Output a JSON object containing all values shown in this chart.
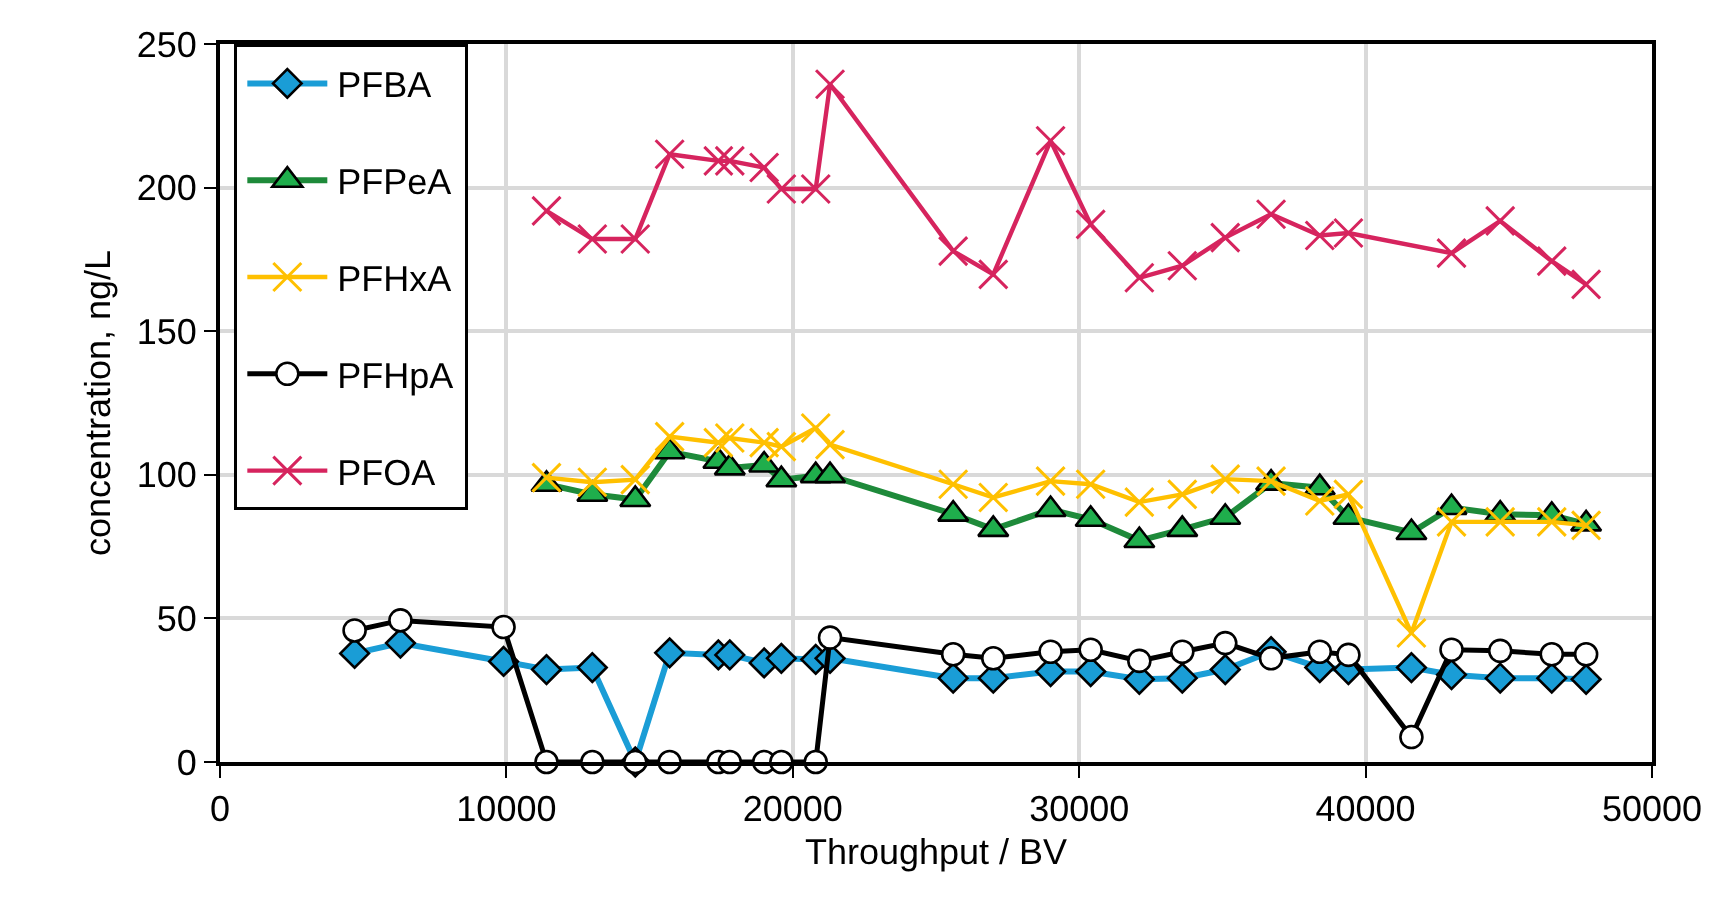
{
  "chart_data": {
    "type": "line",
    "xlabel": "Throughput / BV",
    "ylabel": "concentration, ng/L",
    "xlim": [
      0,
      50000
    ],
    "xticks": [
      0,
      10000,
      20000,
      30000,
      40000,
      50000
    ],
    "ylim": [
      0,
      250
    ],
    "yticks": [
      0,
      50,
      100,
      150,
      200,
      250
    ],
    "grid": true,
    "legend": "top left",
    "line_style": "solid",
    "series": [
      {
        "name": "PFBA",
        "color": "#1a9dd6",
        "marker": "diamond",
        "x": [
          4700,
          6300,
          9900,
          11400,
          13000,
          14500,
          15700,
          17400,
          17800,
          19000,
          19600,
          20800,
          21300,
          25600,
          27000,
          29000,
          30400,
          32100,
          33600,
          35100,
          36700,
          38400,
          39400,
          41600,
          43000,
          44700,
          46500,
          47700
        ],
        "values": [
          37.8,
          41.4,
          35,
          32.2,
          32.9,
          0,
          38,
          37.3,
          37.3,
          34.5,
          36.1,
          35.7,
          36.1,
          29.2,
          29.2,
          31.5,
          31.5,
          28.8,
          29.2,
          32.2,
          38.4,
          32.9,
          32.2,
          32.9,
          30.4,
          29.2,
          29.2,
          28.8
        ]
      },
      {
        "name": "PFPeA",
        "color": "#1e8a3a",
        "marker": "triangle",
        "x": [
          11400,
          13000,
          14500,
          15700,
          17400,
          17800,
          19000,
          19600,
          20800,
          21300,
          25600,
          27000,
          29000,
          30400,
          32100,
          33600,
          35100,
          36700,
          38400,
          39400,
          41600,
          43000,
          44700,
          46500,
          47700
        ],
        "values": [
          96.7,
          93.2,
          91.4,
          108,
          104.7,
          102.4,
          103.4,
          98.3,
          99.7,
          99.7,
          86.3,
          81,
          87.9,
          84.5,
          77.1,
          81,
          85.2,
          97.1,
          95.5,
          85.2,
          79.9,
          88.6,
          86.3,
          85.9,
          82.9
        ]
      },
      {
        "name": "PFHxA",
        "color": "#ffc000",
        "marker": "cross",
        "x": [
          11400,
          13000,
          14500,
          15700,
          17400,
          17800,
          19000,
          19600,
          20800,
          21300,
          25600,
          27000,
          29000,
          30400,
          32100,
          33600,
          35100,
          36700,
          38400,
          39400,
          41600,
          43000,
          44700,
          46500,
          47700
        ],
        "values": [
          99,
          97.4,
          98.3,
          113.3,
          111.2,
          112.8,
          111.2,
          109.8,
          116.3,
          110.5,
          96.7,
          92.1,
          97.8,
          96.7,
          90.5,
          93.2,
          98.5,
          97.8,
          90.9,
          93.2,
          44.9,
          83.6,
          83.6,
          83.6,
          82.4
        ]
      },
      {
        "name": "PFHpA",
        "color": "#000000",
        "marker": "circle",
        "x": [
          4700,
          6300,
          9900,
          11400,
          13000,
          14500,
          15700,
          17400,
          17800,
          19000,
          19600,
          20800,
          21300,
          25600,
          27000,
          29000,
          30400,
          32100,
          33600,
          35100,
          36700,
          38400,
          39400,
          41600,
          43000,
          44700,
          46500,
          47700
        ],
        "values": [
          45.8,
          49.3,
          47,
          0,
          0,
          0,
          0,
          0,
          0,
          0,
          0,
          0,
          43.3,
          37.5,
          36.1,
          38.4,
          39.1,
          35.2,
          38.4,
          41.4,
          36.1,
          38.4,
          37.3,
          8.7,
          39.1,
          38.7,
          37.5,
          37.5
        ]
      },
      {
        "name": "PFOA",
        "color": "#d6245e",
        "marker": "cross",
        "x": [
          11400,
          13000,
          14500,
          15700,
          17400,
          17800,
          19000,
          19600,
          20800,
          21300,
          25600,
          27000,
          29000,
          30400,
          32100,
          33600,
          35100,
          36700,
          38400,
          39400,
          43000,
          44700,
          46500,
          47700
        ],
        "values": [
          191.9,
          182.1,
          182.1,
          211.6,
          209.3,
          209.3,
          207,
          199.5,
          199.5,
          236,
          177.9,
          169.8,
          216.3,
          187.2,
          168.6,
          172.8,
          182.6,
          190.7,
          183.3,
          184.2,
          177.2,
          188.4,
          174.4,
          166.3
        ]
      }
    ]
  }
}
